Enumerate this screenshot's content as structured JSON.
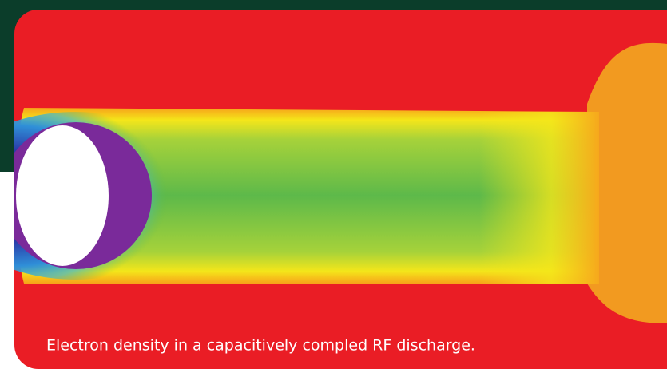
{
  "image": {
    "caption": "Electron density in a capacitively compled RF discharge."
  }
}
